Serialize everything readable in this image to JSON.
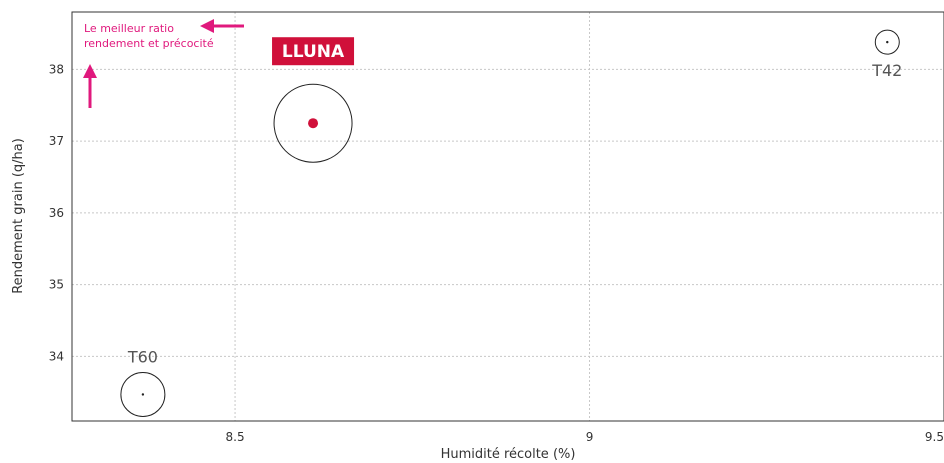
{
  "chart_data": {
    "type": "scatter",
    "xlabel": "Humidité récolte (%)",
    "ylabel": "Rendement grain (q/ha)",
    "xlim": [
      8.27,
      9.5
    ],
    "ylim": [
      33.1,
      38.8
    ],
    "x_ticks": [
      "8.5",
      "9",
      "9.5"
    ],
    "y_ticks": [
      "34",
      "35",
      "36",
      "37",
      "38"
    ],
    "grid": true,
    "points": [
      {
        "label": "LLUNA",
        "x": 8.61,
        "y": 37.25,
        "highlight": true,
        "bubble": "large"
      },
      {
        "label": "T42",
        "x": 9.42,
        "y": 38.38,
        "highlight": false,
        "bubble": "small"
      },
      {
        "label": "T60",
        "x": 8.37,
        "y": 33.47,
        "highlight": false,
        "bubble": "medium"
      }
    ],
    "annotation": {
      "line1": "Le meilleur ratio",
      "line2": "rendement et précocité"
    },
    "colors": {
      "highlight": "#d0103a",
      "annotation": "#e0197d",
      "bubble": "#222222",
      "grid": "#c8c8c8"
    }
  }
}
